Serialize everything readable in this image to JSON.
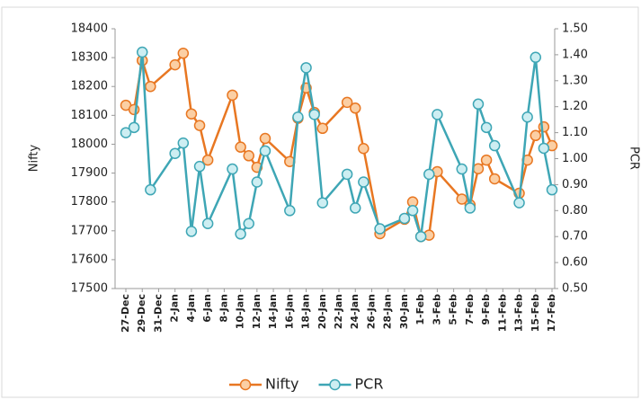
{
  "chart_data": {
    "type": "line",
    "x": [
      "27-Dec",
      "28-Dec",
      "29-Dec",
      "30-Dec",
      "2-Jan",
      "3-Jan",
      "4-Jan",
      "5-Jan",
      "6-Jan",
      "9-Jan",
      "10-Jan",
      "11-Jan",
      "12-Jan",
      "13-Jan",
      "16-Jan",
      "17-Jan",
      "18-Jan",
      "19-Jan",
      "20-Jan",
      "23-Jan",
      "24-Jan",
      "25-Jan",
      "27-Jan",
      "30-Jan",
      "31-Jan",
      "1-Feb",
      "2-Feb",
      "3-Feb",
      "6-Feb",
      "7-Feb",
      "8-Feb",
      "9-Feb",
      "10-Feb",
      "13-Feb",
      "14-Feb",
      "15-Feb",
      "16-Feb",
      "17-Feb"
    ],
    "xticks": [
      "27-Dec",
      "29-Dec",
      "31-Dec",
      "2-Jan",
      "4-Jan",
      "6-Jan",
      "8-Jan",
      "10-Jan",
      "12-Jan",
      "14-Jan",
      "16-Jan",
      "18-Jan",
      "20-Jan",
      "22-Jan",
      "24-Jan",
      "26-Jan",
      "28-Jan",
      "30-Jan",
      "1-Feb",
      "3-Feb",
      "5-Feb",
      "7-Feb",
      "9-Feb",
      "11-Feb",
      "13-Feb",
      "15-Feb",
      "17-Feb"
    ],
    "series": [
      {
        "name": "Nifty",
        "color": "#e87722",
        "marker_color": "#fbcfa4",
        "values": [
          18135,
          18120,
          18290,
          18200,
          18275,
          18315,
          18105,
          18065,
          17945,
          18170,
          17990,
          17960,
          17920,
          18020,
          17940,
          18090,
          18195,
          18110,
          18055,
          18145,
          18125,
          17985,
          17690,
          17740,
          17800,
          17680,
          17685,
          17905,
          17810,
          17790,
          17915,
          17945,
          17880,
          17830,
          17945,
          18030,
          18060,
          17995
        ]
      },
      {
        "name": "PCR",
        "color": "#3ea6b5",
        "marker_color": "#cdeef2",
        "axis": "y2",
        "values": [
          1.1,
          1.12,
          1.41,
          0.88,
          1.02,
          1.06,
          0.72,
          0.97,
          0.75,
          0.96,
          0.71,
          0.75,
          0.91,
          1.03,
          0.8,
          1.16,
          1.35,
          1.17,
          0.83,
          0.94,
          0.81,
          0.91,
          0.73,
          0.77,
          0.8,
          0.7,
          0.94,
          1.17,
          0.96,
          0.81,
          1.21,
          1.12,
          1.05,
          0.83,
          1.16,
          1.39,
          1.04,
          0.88
        ]
      }
    ],
    "ylabel": "Nifty",
    "y2label": "PCR",
    "ylim": [
      17500,
      18400
    ],
    "yticks": [
      17500,
      17600,
      17700,
      17800,
      17900,
      18000,
      18100,
      18200,
      18300,
      18400
    ],
    "y2lim": [
      0.5,
      1.5
    ],
    "y2ticks": [
      {
        "value": 0.5,
        "label": "0.50"
      },
      {
        "value": 0.6,
        "label": "0.60"
      },
      {
        "value": 0.7,
        "label": "0.70"
      },
      {
        "value": 0.8,
        "label": "0.80"
      },
      {
        "value": 0.9,
        "label": "0.90"
      },
      {
        "value": 1.0,
        "label": "1.00"
      },
      {
        "value": 1.1,
        "label": "1.10"
      },
      {
        "value": 1.2,
        "label": "1.20"
      },
      {
        "value": 1.3,
        "label": "1.30"
      },
      {
        "value": 1.4,
        "label": "1.40"
      },
      {
        "value": 1.5,
        "label": "1.50"
      }
    ],
    "legend": "bottom"
  }
}
